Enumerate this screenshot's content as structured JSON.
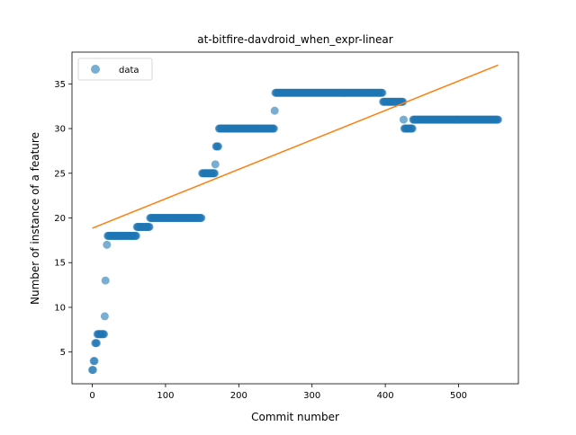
{
  "chart_data": {
    "type": "scatter",
    "title": "at-bitfire-davdroid_when_expr-linear",
    "xlabel": "Commit number",
    "ylabel": "Number of instance of a feature",
    "xlim": [
      -27.7,
      581.7
    ],
    "ylim": [
      1.45,
      38.55
    ],
    "xticks": [
      0,
      100,
      200,
      300,
      400,
      500
    ],
    "yticks": [
      5,
      10,
      15,
      20,
      25,
      30,
      35
    ],
    "grid": false,
    "legend": {
      "position": "top-left",
      "entries": [
        "data"
      ]
    },
    "colors": {
      "data": "#1f77b4",
      "fit": "#ff7f0e"
    },
    "series": [
      {
        "name": "data",
        "kind": "scatter",
        "segments": [
          [
            0,
            1,
            3
          ],
          [
            2,
            3,
            4
          ],
          [
            4,
            6,
            6
          ],
          [
            7,
            16,
            7
          ],
          [
            17,
            17,
            9
          ],
          [
            18,
            18,
            13
          ],
          [
            20,
            20,
            17
          ],
          [
            21,
            60,
            18
          ],
          [
            61,
            78,
            19
          ],
          [
            79,
            149,
            20
          ],
          [
            150,
            167,
            25
          ],
          [
            168,
            168,
            26
          ],
          [
            169,
            172,
            28
          ],
          [
            173,
            248,
            30
          ],
          [
            249,
            249,
            32
          ],
          [
            250,
            396,
            34
          ],
          [
            397,
            424,
            33
          ],
          [
            425,
            425,
            31
          ],
          [
            426,
            437,
            30
          ],
          [
            438,
            554,
            31
          ]
        ]
      },
      {
        "name": "fit",
        "kind": "line",
        "x": [
          0,
          554
        ],
        "y": [
          18.85,
          37.1
        ]
      }
    ]
  }
}
